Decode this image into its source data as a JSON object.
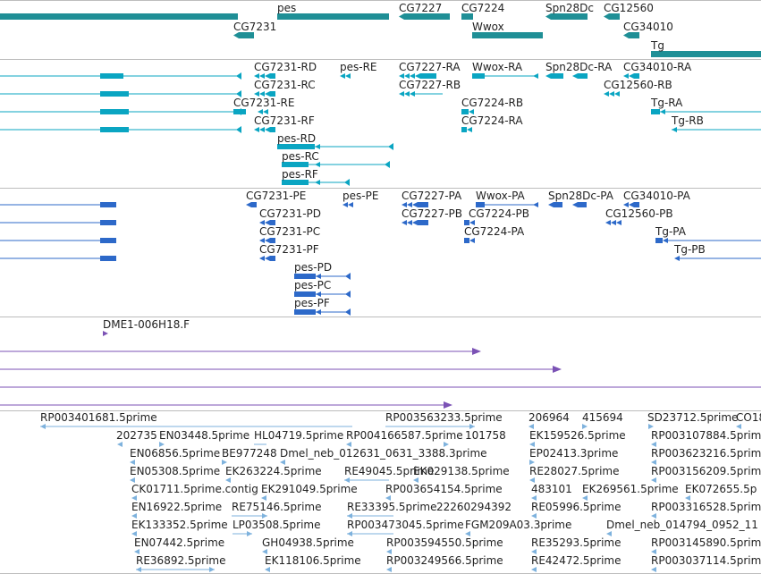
{
  "colors": {
    "gene": "#1f8f96",
    "mrna": "#0aa5c2",
    "cds": "#2d69c9",
    "clone": "#7b52b5",
    "est": "#7eb2dd"
  },
  "tracks": {
    "genes": [
      {
        "label": "pes"
      },
      {
        "label": "CG7227"
      },
      {
        "label": "CG7224"
      },
      {
        "label": "Spn28Dc"
      },
      {
        "label": "CG12560"
      },
      {
        "label": "CG7231"
      },
      {
        "label": "Wwox"
      },
      {
        "label": "CG34010"
      },
      {
        "label": "Tg"
      }
    ],
    "transcripts": [
      {
        "label": "CG7231-RD"
      },
      {
        "label": "pes-RE"
      },
      {
        "label": "CG7227-RA"
      },
      {
        "label": "Wwox-RA"
      },
      {
        "label": "Spn28Dc-RA"
      },
      {
        "label": "CG34010-RA"
      },
      {
        "label": "CG7231-RC"
      },
      {
        "label": "CG7227-RB"
      },
      {
        "label": "CG12560-RB"
      },
      {
        "label": "CG7231-RE"
      },
      {
        "label": "CG7224-RB"
      },
      {
        "label": "Tg-RA"
      },
      {
        "label": "CG7231-RF"
      },
      {
        "label": "CG7224-RA"
      },
      {
        "label": "Tg-RB"
      },
      {
        "label": "pes-RD"
      },
      {
        "label": "pes-RC"
      },
      {
        "label": "pes-RF"
      }
    ],
    "polypeptides": [
      {
        "label": "CG7231-PE"
      },
      {
        "label": "pes-PE"
      },
      {
        "label": "CG7227-PA"
      },
      {
        "label": "Wwox-PA"
      },
      {
        "label": "Spn28Dc-PA"
      },
      {
        "label": "CG34010-PA"
      },
      {
        "label": "CG7231-PD"
      },
      {
        "label": "CG7227-PB"
      },
      {
        "label": "CG7224-PB"
      },
      {
        "label": "CG12560-PB"
      },
      {
        "label": "CG7231-PC"
      },
      {
        "label": "CG7224-PA"
      },
      {
        "label": "Tg-PA"
      },
      {
        "label": "CG7231-PF"
      },
      {
        "label": "Tg-PB"
      },
      {
        "label": "pes-PD"
      },
      {
        "label": "pes-PC"
      },
      {
        "label": "pes-PF"
      }
    ],
    "clones": [
      {
        "label": "DME1-006H18.F"
      }
    ],
    "ests": [
      {
        "label": "RP003401681.5prime"
      },
      {
        "label": "RP003563233.5prime"
      },
      {
        "label": "206964"
      },
      {
        "label": "415694"
      },
      {
        "label": "SD23712.5prime"
      },
      {
        "label": "CO18"
      },
      {
        "label": "202735"
      },
      {
        "label": "EN03448.5prime"
      },
      {
        "label": "HL04719.5prime"
      },
      {
        "label": "RP004166587.5prime"
      },
      {
        "label": "101758"
      },
      {
        "label": "EK159526.5prime"
      },
      {
        "label": "RP003107884.5prime"
      },
      {
        "label": "EN06856.5prime"
      },
      {
        "label": "BE977248"
      },
      {
        "label": "Dmel_neb_012631_0631_3388.3prime"
      },
      {
        "label": "EP02413.3prime"
      },
      {
        "label": "RP003623216.5prime"
      },
      {
        "label": "EN05308.5prime"
      },
      {
        "label": "EK263224.5prime"
      },
      {
        "label": "RE49045.5prime"
      },
      {
        "label": "EK029138.5prime"
      },
      {
        "label": "RE28027.5prime"
      },
      {
        "label": "RP003156209.5prime"
      },
      {
        "label": "CK01711.5prime.contig"
      },
      {
        "label": "EK291049.5prime"
      },
      {
        "label": "RP003654154.5prime"
      },
      {
        "label": "483101"
      },
      {
        "label": "EK269561.5prime"
      },
      {
        "label": "EK072655.5p"
      },
      {
        "label": "EN16922.5prime"
      },
      {
        "label": "RE75146.5prime"
      },
      {
        "label": "RE33395.5prime"
      },
      {
        "label": "22260294392"
      },
      {
        "label": "RE05996.5prime"
      },
      {
        "label": "RP003316528.5prime"
      },
      {
        "label": "EK133352.5prime"
      },
      {
        "label": "LP03508.5prime"
      },
      {
        "label": "RP003473045.5prime"
      },
      {
        "label": "FGM209A03.3prime"
      },
      {
        "label": "Dmel_neb_014794_0952_11"
      },
      {
        "label": "EN07442.5prime"
      },
      {
        "label": "GH04938.5prime"
      },
      {
        "label": "RP003594550.5prime"
      },
      {
        "label": "RE35293.5prime"
      },
      {
        "label": "RP003145890.5prime"
      },
      {
        "label": "RE36892.5prime"
      },
      {
        "label": "EK118106.5prime"
      },
      {
        "label": "RP003249566.5prime"
      },
      {
        "label": "RE42472.5prime"
      },
      {
        "label": "RP003037114.5prime"
      }
    ]
  }
}
